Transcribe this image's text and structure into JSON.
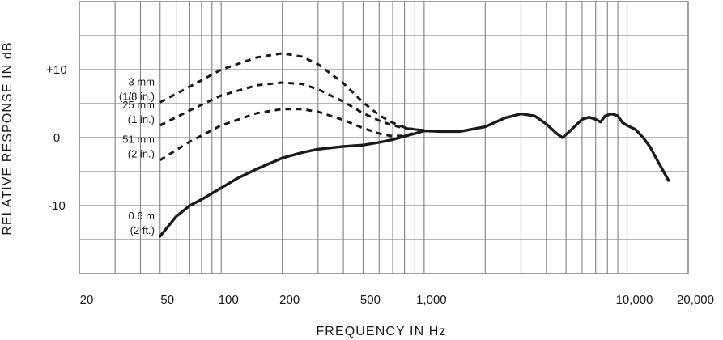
{
  "chart_data": {
    "type": "line",
    "title": "",
    "xlabel": "FREQUENCY IN Hz",
    "ylabel": "RELATIVE RESPONSE IN dB",
    "x_scale": "log",
    "xlim": [
      20,
      20000
    ],
    "ylim": [
      -20,
      20
    ],
    "grid": true,
    "legend": "none",
    "x_tick_labels": [
      {
        "value": 20,
        "label": "20"
      },
      {
        "value": 50,
        "label": "50"
      },
      {
        "value": 100,
        "label": "100"
      },
      {
        "value": 200,
        "label": "200"
      },
      {
        "value": 500,
        "label": "500"
      },
      {
        "value": 1000,
        "label": "1,000"
      },
      {
        "value": 10000,
        "label": "10,000"
      },
      {
        "value": 20000,
        "label": "20,000"
      }
    ],
    "y_tick_labels": [
      {
        "value": 10,
        "label": "+10"
      },
      {
        "value": 0,
        "label": "0"
      },
      {
        "value": -10,
        "label": "-10"
      }
    ],
    "grid_x_values": [
      20,
      30,
      40,
      50,
      60,
      70,
      80,
      90,
      100,
      200,
      300,
      400,
      500,
      600,
      700,
      800,
      900,
      1000,
      2000,
      3000,
      4000,
      5000,
      6000,
      7000,
      8000,
      9000,
      10000,
      20000
    ],
    "grid_y_values": [
      -20,
      -15,
      -10,
      -5,
      0,
      5,
      10,
      15,
      20
    ],
    "line_color": "#1a1a1a",
    "grid_color": "#8a8a8a",
    "series": [
      {
        "label_lines": [
          "3 mm",
          "(1/8 in.)"
        ],
        "style": "dashed",
        "points": [
          [
            50,
            5.2
          ],
          [
            70,
            7.5
          ],
          [
            100,
            10.0
          ],
          [
            150,
            11.8
          ],
          [
            200,
            12.4
          ],
          [
            250,
            11.9
          ],
          [
            300,
            10.8
          ],
          [
            400,
            8.0
          ],
          [
            500,
            5.2
          ],
          [
            600,
            3.3
          ],
          [
            700,
            2.2
          ],
          [
            800,
            1.5
          ],
          [
            900,
            1.2
          ],
          [
            1000,
            1.1
          ]
        ]
      },
      {
        "label_lines": [
          "25 mm",
          "(1 in.)"
        ],
        "style": "dashed",
        "points": [
          [
            50,
            1.8
          ],
          [
            70,
            4.0
          ],
          [
            100,
            6.2
          ],
          [
            150,
            7.7
          ],
          [
            200,
            8.1
          ],
          [
            250,
            7.9
          ],
          [
            300,
            7.1
          ],
          [
            400,
            5.3
          ],
          [
            500,
            3.6
          ],
          [
            600,
            2.5
          ],
          [
            700,
            1.8
          ],
          [
            800,
            1.4
          ],
          [
            900,
            1.2
          ],
          [
            1000,
            1.1
          ]
        ]
      },
      {
        "label_lines": [
          "51 mm",
          "(2 in.)"
        ],
        "style": "dashed",
        "points": [
          [
            50,
            -3.3
          ],
          [
            70,
            -0.6
          ],
          [
            100,
            1.8
          ],
          [
            150,
            3.6
          ],
          [
            200,
            4.2
          ],
          [
            250,
            4.2
          ],
          [
            300,
            3.8
          ],
          [
            400,
            2.6
          ],
          [
            500,
            1.4
          ],
          [
            600,
            0.6
          ],
          [
            700,
            0.2
          ],
          [
            800,
            0.3
          ],
          [
            900,
            0.7
          ],
          [
            1000,
            1.0
          ]
        ]
      },
      {
        "label_lines": [
          "0.6 m",
          "(2 ft.)"
        ],
        "style": "solid",
        "points": [
          [
            50,
            -14.5
          ],
          [
            60,
            -11.6
          ],
          [
            70,
            -10.0
          ],
          [
            80,
            -9.1
          ],
          [
            90,
            -8.2
          ],
          [
            100,
            -7.4
          ],
          [
            120,
            -6.0
          ],
          [
            150,
            -4.6
          ],
          [
            200,
            -3.0
          ],
          [
            250,
            -2.2
          ],
          [
            300,
            -1.7
          ],
          [
            400,
            -1.3
          ],
          [
            500,
            -1.1
          ],
          [
            600,
            -0.7
          ],
          [
            700,
            -0.3
          ],
          [
            800,
            0.2
          ],
          [
            900,
            0.6
          ],
          [
            1000,
            1.0
          ],
          [
            1200,
            0.9
          ],
          [
            1500,
            0.9
          ],
          [
            2000,
            1.6
          ],
          [
            2500,
            2.9
          ],
          [
            3000,
            3.5
          ],
          [
            3500,
            3.2
          ],
          [
            4000,
            2.0
          ],
          [
            4500,
            0.6
          ],
          [
            4800,
            0.0
          ],
          [
            5200,
            0.9
          ],
          [
            6000,
            2.7
          ],
          [
            6500,
            3.0
          ],
          [
            7000,
            2.7
          ],
          [
            7400,
            2.3
          ],
          [
            7800,
            3.2
          ],
          [
            8400,
            3.5
          ],
          [
            9000,
            3.2
          ],
          [
            9500,
            2.2
          ],
          [
            10000,
            1.8
          ],
          [
            11000,
            1.2
          ],
          [
            12000,
            0.0
          ],
          [
            13000,
            -1.4
          ],
          [
            14000,
            -3.2
          ],
          [
            15000,
            -4.8
          ],
          [
            16000,
            -6.3
          ]
        ]
      }
    ]
  }
}
